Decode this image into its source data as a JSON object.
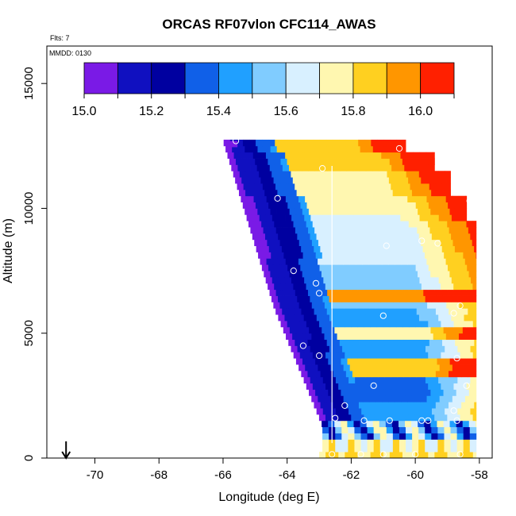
{
  "chart_data": {
    "type": "heatmap",
    "title": "ORCAS RF07vlon CFC114_AWAS",
    "xlabel": "Longitude (deg E)",
    "ylabel": "Altitude (m)",
    "xlim": [
      -71.5,
      -57.6
    ],
    "ylim": [
      0,
      16500
    ],
    "x_ticks": [
      -70,
      -68,
      -66,
      -64,
      -62,
      -60,
      -58
    ],
    "x_tick_labels": [
      "-70",
      "-68",
      "-66",
      "-64",
      "-62",
      "-60",
      "-58"
    ],
    "y_ticks": [
      0,
      5000,
      10000,
      15000
    ],
    "y_tick_labels": [
      "0",
      "5000",
      "10000",
      "15000"
    ],
    "flights_label": "Flts: 7",
    "date_label": "MMDD: 0130",
    "colorbar": {
      "min": 15.0,
      "max": 16.1,
      "bin_edges": [
        15.0,
        15.1,
        15.2,
        15.3,
        15.4,
        15.5,
        15.6,
        15.7,
        15.8,
        15.9,
        16.0,
        16.1
      ],
      "colors": [
        "#7a1ae6",
        "#1010c0",
        "#0000a0",
        "#1060e8",
        "#20a0ff",
        "#80ccff",
        "#d8f0ff",
        "#fff7b0",
        "#ffd020",
        "#ff9600",
        "#ff2000",
        "#c00010"
      ],
      "tick_values": [
        15.0,
        15.2,
        15.4,
        15.6,
        15.8,
        16.0
      ],
      "tick_labels": [
        "15.0",
        "15.2",
        "15.4",
        "15.6",
        "15.8",
        "16.0"
      ]
    },
    "marker_longitude": -70.9,
    "vertical_line_longitude": -62.6,
    "sample_points": [
      [
        -65.6,
        12700
      ],
      [
        -60.5,
        12400
      ],
      [
        -62.9,
        11600
      ],
      [
        -64.3,
        10400
      ],
      [
        -58.3,
        10300
      ],
      [
        -59.8,
        8700
      ],
      [
        -59.3,
        8600
      ],
      [
        -60.9,
        8500
      ],
      [
        -63.8,
        7500
      ],
      [
        -63.1,
        7000
      ],
      [
        -63.0,
        6600
      ],
      [
        -58.6,
        6100
      ],
      [
        -61.0,
        5700
      ],
      [
        -58.8,
        5800
      ],
      [
        -63.5,
        4500
      ],
      [
        -63.0,
        4100
      ],
      [
        -58.7,
        4000
      ],
      [
        -61.3,
        2900
      ],
      [
        -58.4,
        2900
      ],
      [
        -63.4,
        2000
      ],
      [
        -62.2,
        2100
      ],
      [
        -58.8,
        1900
      ],
      [
        -62.5,
        1600
      ],
      [
        -61.6,
        1500
      ],
      [
        -60.8,
        1500
      ],
      [
        -59.8,
        1500
      ],
      [
        -59.6,
        1500
      ],
      [
        -58.7,
        1500
      ],
      [
        -62.6,
        150
      ],
      [
        -61.7,
        150
      ],
      [
        -61.0,
        150
      ],
      [
        -60.0,
        150
      ],
      [
        -58.6,
        150
      ]
    ]
  }
}
